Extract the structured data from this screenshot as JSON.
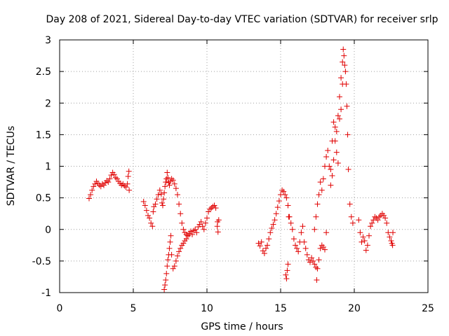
{
  "chart_data": {
    "type": "scatter",
    "title": "Day 208 of 2021, Sidereal Day-to-day VTEC variation (SDTVAR) for receiver srlp",
    "xlabel": "GPS time / hours",
    "ylabel": "SDTVAR / TECUs",
    "xlim": [
      0,
      25
    ],
    "ylim": [
      -1,
      3
    ],
    "xticks": [
      0,
      5,
      10,
      15,
      20,
      25
    ],
    "xtick_labels": [
      "0",
      "5",
      "10",
      "15",
      "20",
      "25"
    ],
    "yticks": [
      -1,
      -0.5,
      0,
      0.5,
      1,
      1.5,
      2,
      2.5,
      3
    ],
    "ytick_labels": [
      "-1",
      "-0.5",
      "0",
      "0.5",
      "1",
      "1.5",
      "2",
      "2.5",
      "3"
    ],
    "grid": true,
    "marker": "+",
    "color": "#e00000",
    "series": [
      {
        "name": "SDTVAR",
        "points": [
          [
            2.0,
            0.49
          ],
          [
            2.1,
            0.55
          ],
          [
            2.2,
            0.62
          ],
          [
            2.3,
            0.68
          ],
          [
            2.4,
            0.72
          ],
          [
            2.5,
            0.76
          ],
          [
            2.6,
            0.73
          ],
          [
            2.7,
            0.7
          ],
          [
            2.8,
            0.68
          ],
          [
            2.9,
            0.72
          ],
          [
            3.0,
            0.7
          ],
          [
            3.1,
            0.74
          ],
          [
            3.2,
            0.77
          ],
          [
            3.3,
            0.75
          ],
          [
            3.4,
            0.8
          ],
          [
            3.5,
            0.86
          ],
          [
            3.6,
            0.9
          ],
          [
            3.7,
            0.87
          ],
          [
            3.8,
            0.82
          ],
          [
            3.9,
            0.8
          ],
          [
            4.0,
            0.76
          ],
          [
            4.1,
            0.73
          ],
          [
            4.2,
            0.7
          ],
          [
            4.3,
            0.72
          ],
          [
            4.4,
            0.69
          ],
          [
            4.5,
            0.67
          ],
          [
            4.6,
            0.72
          ],
          [
            4.65,
            0.84
          ],
          [
            4.7,
            0.92
          ],
          [
            4.72,
            0.62
          ],
          [
            5.7,
            0.44
          ],
          [
            5.8,
            0.38
          ],
          [
            5.9,
            0.3
          ],
          [
            6.0,
            0.22
          ],
          [
            6.1,
            0.18
          ],
          [
            6.2,
            0.1
          ],
          [
            6.3,
            0.05
          ],
          [
            6.35,
            0.28
          ],
          [
            6.4,
            0.36
          ],
          [
            6.5,
            0.4
          ],
          [
            6.6,
            0.48
          ],
          [
            6.7,
            0.55
          ],
          [
            6.8,
            0.62
          ],
          [
            6.9,
            0.56
          ],
          [
            6.95,
            0.42
          ],
          [
            7.0,
            0.38
          ],
          [
            7.05,
            0.48
          ],
          [
            7.1,
            0.58
          ],
          [
            7.15,
            0.68
          ],
          [
            7.2,
            0.75
          ],
          [
            7.25,
            0.8
          ],
          [
            7.3,
            0.9
          ],
          [
            7.35,
            0.82
          ],
          [
            7.4,
            0.74
          ],
          [
            7.45,
            0.7
          ],
          [
            7.5,
            0.76
          ],
          [
            7.6,
            0.8
          ],
          [
            7.7,
            0.78
          ],
          [
            7.8,
            0.72
          ],
          [
            7.9,
            0.65
          ],
          [
            8.0,
            0.55
          ],
          [
            8.1,
            0.4
          ],
          [
            8.2,
            0.25
          ],
          [
            8.3,
            0.1
          ],
          [
            8.4,
            0.0
          ],
          [
            8.5,
            -0.05
          ],
          [
            8.6,
            -0.08
          ],
          [
            8.7,
            -0.1
          ],
          [
            8.8,
            -0.06
          ],
          [
            8.9,
            -0.03
          ],
          [
            9.0,
            -0.08
          ],
          [
            9.1,
            -0.02
          ],
          [
            9.2,
            0.0
          ],
          [
            9.3,
            -0.05
          ],
          [
            9.4,
            0.04
          ],
          [
            9.5,
            0.08
          ],
          [
            9.6,
            0.12
          ],
          [
            9.7,
            0.05
          ],
          [
            9.8,
            0.0
          ],
          [
            9.9,
            0.1
          ],
          [
            10.0,
            0.18
          ],
          [
            10.1,
            0.28
          ],
          [
            10.2,
            0.32
          ],
          [
            10.3,
            0.34
          ],
          [
            10.4,
            0.36
          ],
          [
            10.5,
            0.38
          ],
          [
            10.6,
            0.34
          ],
          [
            7.1,
            -0.95
          ],
          [
            7.15,
            -0.88
          ],
          [
            7.2,
            -0.8
          ],
          [
            7.25,
            -0.7
          ],
          [
            7.3,
            -0.58
          ],
          [
            7.35,
            -0.48
          ],
          [
            7.4,
            -0.4
          ],
          [
            7.45,
            -0.3
          ],
          [
            7.5,
            -0.2
          ],
          [
            7.55,
            -0.1
          ],
          [
            7.6,
            -0.4
          ],
          [
            7.7,
            -0.62
          ],
          [
            7.8,
            -0.58
          ],
          [
            7.9,
            -0.5
          ],
          [
            8.0,
            -0.42
          ],
          [
            8.1,
            -0.35
          ],
          [
            8.2,
            -0.3
          ],
          [
            8.3,
            -0.25
          ],
          [
            8.4,
            -0.22
          ],
          [
            8.5,
            -0.18
          ],
          [
            8.6,
            -0.15
          ],
          [
            8.7,
            -0.1
          ],
          [
            8.8,
            -0.08
          ],
          [
            10.7,
            0.05
          ],
          [
            10.72,
            0.12
          ],
          [
            10.75,
            -0.04
          ],
          [
            10.8,
            0.15
          ],
          [
            13.5,
            -0.22
          ],
          [
            13.6,
            -0.26
          ],
          [
            13.7,
            -0.2
          ],
          [
            13.8,
            -0.34
          ],
          [
            13.9,
            -0.38
          ],
          [
            14.0,
            -0.3
          ],
          [
            14.1,
            -0.25
          ],
          [
            14.2,
            -0.15
          ],
          [
            14.3,
            -0.05
          ],
          [
            14.4,
            0.02
          ],
          [
            14.5,
            0.08
          ],
          [
            14.6,
            0.15
          ],
          [
            14.7,
            0.25
          ],
          [
            14.8,
            0.35
          ],
          [
            14.9,
            0.45
          ],
          [
            15.0,
            0.55
          ],
          [
            15.1,
            0.62
          ],
          [
            15.2,
            0.6
          ],
          [
            15.3,
            0.55
          ],
          [
            15.4,
            0.5
          ],
          [
            15.5,
            0.38
          ],
          [
            15.6,
            0.2
          ],
          [
            15.7,
            0.1
          ],
          [
            15.8,
            0.0
          ],
          [
            15.9,
            -0.15
          ],
          [
            16.0,
            -0.25
          ],
          [
            16.1,
            -0.3
          ],
          [
            16.2,
            -0.35
          ],
          [
            16.3,
            -0.2
          ],
          [
            16.4,
            -0.05
          ],
          [
            16.5,
            0.05
          ],
          [
            16.6,
            -0.2
          ],
          [
            16.7,
            -0.3
          ],
          [
            16.8,
            -0.4
          ],
          [
            16.9,
            -0.48
          ],
          [
            17.0,
            -0.52
          ],
          [
            17.1,
            -0.45
          ],
          [
            17.2,
            -0.5
          ],
          [
            17.3,
            -0.55
          ],
          [
            17.4,
            -0.6
          ],
          [
            17.45,
            -0.8
          ],
          [
            17.5,
            -0.62
          ],
          [
            17.6,
            -0.48
          ],
          [
            17.7,
            -0.3
          ],
          [
            17.8,
            -0.25
          ],
          [
            17.9,
            -0.28
          ],
          [
            18.0,
            -0.32
          ],
          [
            18.1,
            -0.05
          ],
          [
            15.35,
            -0.72
          ],
          [
            15.4,
            -0.78
          ],
          [
            15.45,
            -0.65
          ],
          [
            15.5,
            -0.55
          ],
          [
            15.55,
            0.2
          ],
          [
            17.3,
            0.0
          ],
          [
            17.4,
            0.2
          ],
          [
            17.5,
            0.4
          ],
          [
            17.6,
            0.55
          ],
          [
            17.7,
            0.75
          ],
          [
            17.8,
            0.62
          ],
          [
            17.9,
            0.8
          ],
          [
            18.0,
            1.0
          ],
          [
            18.1,
            1.15
          ],
          [
            18.2,
            1.25
          ],
          [
            18.3,
            1.0
          ],
          [
            18.4,
            0.7
          ],
          [
            18.5,
            0.85
          ],
          [
            18.6,
            1.1
          ],
          [
            18.7,
            1.4
          ],
          [
            18.8,
            1.55
          ],
          [
            18.9,
            1.8
          ],
          [
            19.0,
            2.1
          ],
          [
            19.1,
            2.4
          ],
          [
            19.2,
            2.65
          ],
          [
            19.25,
            2.85
          ],
          [
            19.3,
            2.75
          ],
          [
            19.35,
            2.6
          ],
          [
            19.4,
            2.5
          ],
          [
            19.45,
            2.3
          ],
          [
            19.5,
            1.95
          ],
          [
            19.55,
            1.5
          ],
          [
            19.6,
            0.95
          ],
          [
            19.7,
            0.4
          ],
          [
            19.8,
            0.2
          ],
          [
            19.9,
            0.1
          ],
          [
            18.4,
            0.95
          ],
          [
            18.5,
            1.4
          ],
          [
            18.6,
            1.7
          ],
          [
            18.7,
            1.62
          ],
          [
            18.8,
            1.22
          ],
          [
            18.9,
            1.05
          ],
          [
            19.0,
            1.75
          ],
          [
            19.1,
            1.9
          ],
          [
            19.2,
            2.3
          ],
          [
            20.3,
            0.15
          ],
          [
            20.4,
            -0.05
          ],
          [
            20.5,
            -0.2
          ],
          [
            20.6,
            -0.12
          ],
          [
            20.7,
            -0.18
          ],
          [
            20.8,
            -0.33
          ],
          [
            20.9,
            -0.25
          ],
          [
            21.0,
            -0.1
          ],
          [
            21.1,
            0.05
          ],
          [
            21.2,
            0.1
          ],
          [
            21.3,
            0.15
          ],
          [
            21.4,
            0.2
          ],
          [
            21.5,
            0.18
          ],
          [
            21.6,
            0.15
          ],
          [
            21.7,
            0.2
          ],
          [
            21.8,
            0.22
          ],
          [
            21.9,
            0.25
          ],
          [
            22.0,
            0.22
          ],
          [
            22.1,
            0.18
          ],
          [
            22.2,
            0.1
          ],
          [
            22.3,
            -0.05
          ],
          [
            22.4,
            -0.12
          ],
          [
            22.5,
            -0.18
          ],
          [
            22.55,
            -0.22
          ],
          [
            22.6,
            -0.25
          ],
          [
            22.62,
            -0.05
          ]
        ]
      }
    ]
  }
}
